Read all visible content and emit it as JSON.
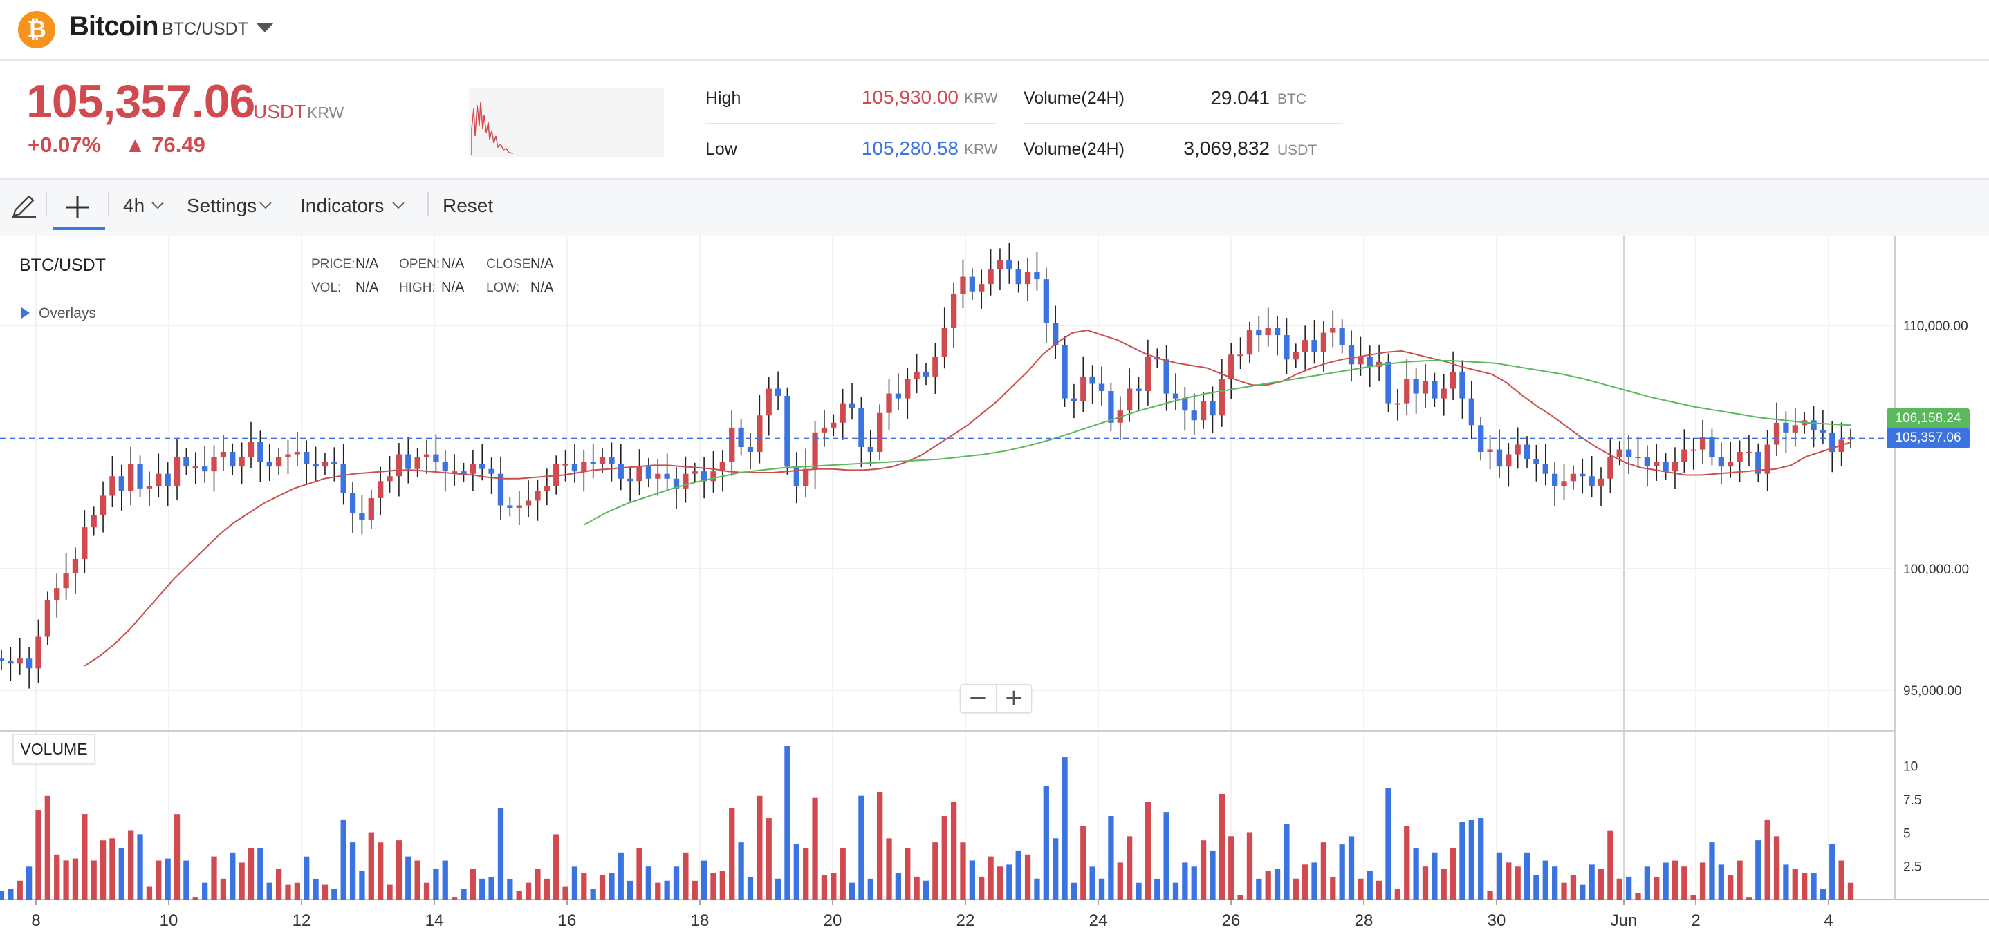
{
  "header": {
    "coin_name": "Bitcoin",
    "pair": "BTC/USDT",
    "logo_icon": "bitcoin-icon",
    "brand_color": "#f7931a"
  },
  "price": {
    "value": "105,357.06",
    "unit_primary": "USDT",
    "unit_secondary": "KRW",
    "change_pct": "+0.07%",
    "change_abs": "▲ 76.49",
    "up_color": "#d04a4f"
  },
  "stats": {
    "high_label": "High",
    "high_value": "105,930.00",
    "high_unit": "KRW",
    "low_label": "Low",
    "low_value": "105,280.58",
    "low_unit": "KRW",
    "vol1_label": "Volume(24H)",
    "vol1_value": "29.041",
    "vol1_unit": "BTC",
    "vol2_label": "Volume(24H)",
    "vol2_value": "3,069,832",
    "vol2_unit": "USDT"
  },
  "toolbar": {
    "draw_icon": "pencil-icon",
    "crosshair_icon": "crosshair-icon",
    "interval_label": "4h",
    "settings_label": "Settings",
    "indicators_label": "Indicators",
    "reset_label": "Reset"
  },
  "legend": {
    "symbol": "BTC/USDT",
    "overlays_label": "Overlays",
    "price_key": "PRICE:",
    "price_val": "N/A",
    "open_key": "OPEN:",
    "open_val": "N/A",
    "close_key": "CLOSE:",
    "close_val": "N/A",
    "vol_key": "VOL:",
    "vol_val": "N/A",
    "high_key": "HIGH:",
    "high_val": "N/A",
    "low_key": "LOW:",
    "low_val": "N/A",
    "volume_panel_label": "VOLUME"
  },
  "zoom": {
    "minus": "−",
    "plus": "+"
  },
  "chart_data": {
    "type": "candlestick",
    "symbol": "BTC/USDT",
    "interval": "4h",
    "up_color": "#d04a4f",
    "down_color": "#3b73e0",
    "ma_short_color": "#c8504e",
    "ma_long_color": "#5cb85c",
    "ylim": [
      92500,
      114500
    ],
    "yticks": [
      95000,
      100000,
      110000
    ],
    "ytick_labels": [
      "95,000.00",
      "100,000.00",
      "110,000.00"
    ],
    "last_price": 105357.06,
    "last_price_label": "105,357.06",
    "ma_last": 106158.24,
    "ma_last_label": "106,158.24",
    "x_ticks": [
      "8",
      "10",
      "12",
      "14",
      "16",
      "18",
      "20",
      "22",
      "24",
      "26",
      "28",
      "30",
      "Jun",
      "2",
      "4"
    ],
    "volume_ylim": [
      0,
      12
    ],
    "volume_yticks": [
      2.5,
      5,
      7.5,
      10
    ],
    "volume_ytick_labels": [
      "2.5",
      "5",
      "7.5",
      "10"
    ],
    "closes": [
      96200,
      96100,
      96300,
      95900,
      97200,
      98700,
      99200,
      99800,
      100400,
      101700,
      102200,
      103000,
      103800,
      103200,
      104300,
      103300,
      103400,
      103900,
      103400,
      104600,
      104200,
      104200,
      104000,
      104600,
      104800,
      104200,
      104600,
      105200,
      104400,
      104200,
      104600,
      104700,
      104800,
      104300,
      104200,
      104400,
      104300,
      103100,
      102300,
      102000,
      102900,
      103600,
      103800,
      104700,
      104100,
      104600,
      104700,
      104400,
      104000,
      104000,
      103900,
      104300,
      104100,
      103900,
      102600,
      102500,
      102600,
      102800,
      103200,
      103400,
      104300,
      104300,
      104000,
      104400,
      104300,
      104600,
      104300,
      103700,
      103600,
      104200,
      103700,
      103900,
      103700,
      103300,
      103900,
      104000,
      103600,
      104000,
      104400,
      105800,
      105000,
      104800,
      106300,
      107400,
      107100,
      104200,
      103400,
      104100,
      105600,
      105800,
      106000,
      106800,
      106600,
      105000,
      104800,
      106400,
      107200,
      107000,
      107800,
      108100,
      107900,
      108700,
      109900,
      111300,
      112000,
      111400,
      111700,
      112300,
      112700,
      112300,
      111700,
      112200,
      111900,
      110100,
      109200,
      107000,
      106900,
      107900,
      107600,
      107300,
      106000,
      106500,
      107400,
      107300,
      108700,
      108600,
      107200,
      107000,
      106500,
      106100,
      106900,
      106300,
      107800,
      108800,
      108800,
      109800,
      109600,
      109900,
      109600,
      108600,
      108900,
      109400,
      108900,
      109700,
      109900,
      109200,
      108400,
      108700,
      108300,
      108500,
      106800,
      106800,
      107800,
      107200,
      107700,
      107000,
      107400,
      108100,
      107000,
      105900,
      104800,
      104900,
      104200,
      104700,
      105100,
      104500,
      104300,
      103900,
      103400,
      103600,
      103900,
      103800,
      103400,
      103700,
      104600,
      104900,
      104600,
      104600,
      104200,
      104400,
      104000,
      104400,
      104900,
      104900,
      105400,
      104600,
      104200,
      104400,
      104800,
      104800,
      103900,
      105100,
      106000,
      105600,
      105900,
      106100,
      105700,
      105600,
      104800,
      105300,
      105400
    ],
    "ohlc_open_first": 96300,
    "ma_short": [
      96000,
      96400,
      96900,
      97500,
      98200,
      98900,
      99600,
      100200,
      100800,
      101400,
      101900,
      102300,
      102700,
      103000,
      103300,
      103500,
      103700,
      103800,
      103900,
      103950,
      104000,
      104050,
      104050,
      104000,
      103950,
      103900,
      103850,
      103750,
      103700,
      103700,
      103750,
      103800,
      103850,
      103950,
      104050,
      104100,
      104150,
      104200,
      104250,
      104250,
      104200,
      104150,
      104100,
      104000,
      103950,
      103950,
      103950,
      104000,
      104050,
      104100,
      104100,
      104050,
      104050,
      104100,
      104200,
      104400,
      104700,
      105100,
      105500,
      105900,
      106400,
      106900,
      107500,
      108100,
      108800,
      109300,
      109700,
      109800,
      109600,
      109400,
      109100,
      108800,
      108600,
      108450,
      108350,
      108250,
      108000,
      107750,
      107550,
      107550,
      107700,
      108000,
      108250,
      108450,
      108600,
      108700,
      108800,
      108900,
      108950,
      108800,
      108650,
      108500,
      108300,
      108150,
      108000,
      107650,
      107150,
      106700,
      106300,
      105850,
      105400,
      105000,
      104650,
      104350,
      104150,
      104050,
      103950,
      103850,
      103850,
      103900,
      103950,
      104000,
      104050,
      104100,
      104250,
      104600,
      104800,
      105000,
      105200
    ],
    "ma_long": [
      101800,
      102300,
      102700,
      103000,
      103300,
      103550,
      103750,
      103950,
      104050,
      104150,
      104200,
      104250,
      104300,
      104350,
      104400,
      104450,
      104500,
      104600,
      104700,
      104850,
      105050,
      105300,
      105600,
      105900,
      106200,
      106500,
      106750,
      107000,
      107200,
      107350,
      107500,
      107650,
      107800,
      107950,
      108100,
      108250,
      108400,
      108500,
      108550,
      108550,
      108500,
      108450,
      108300,
      108150,
      108000,
      107800,
      107550,
      107300,
      107050,
      106850,
      106650,
      106500,
      106350,
      106200,
      106100,
      106000,
      105950,
      105900
    ]
  }
}
